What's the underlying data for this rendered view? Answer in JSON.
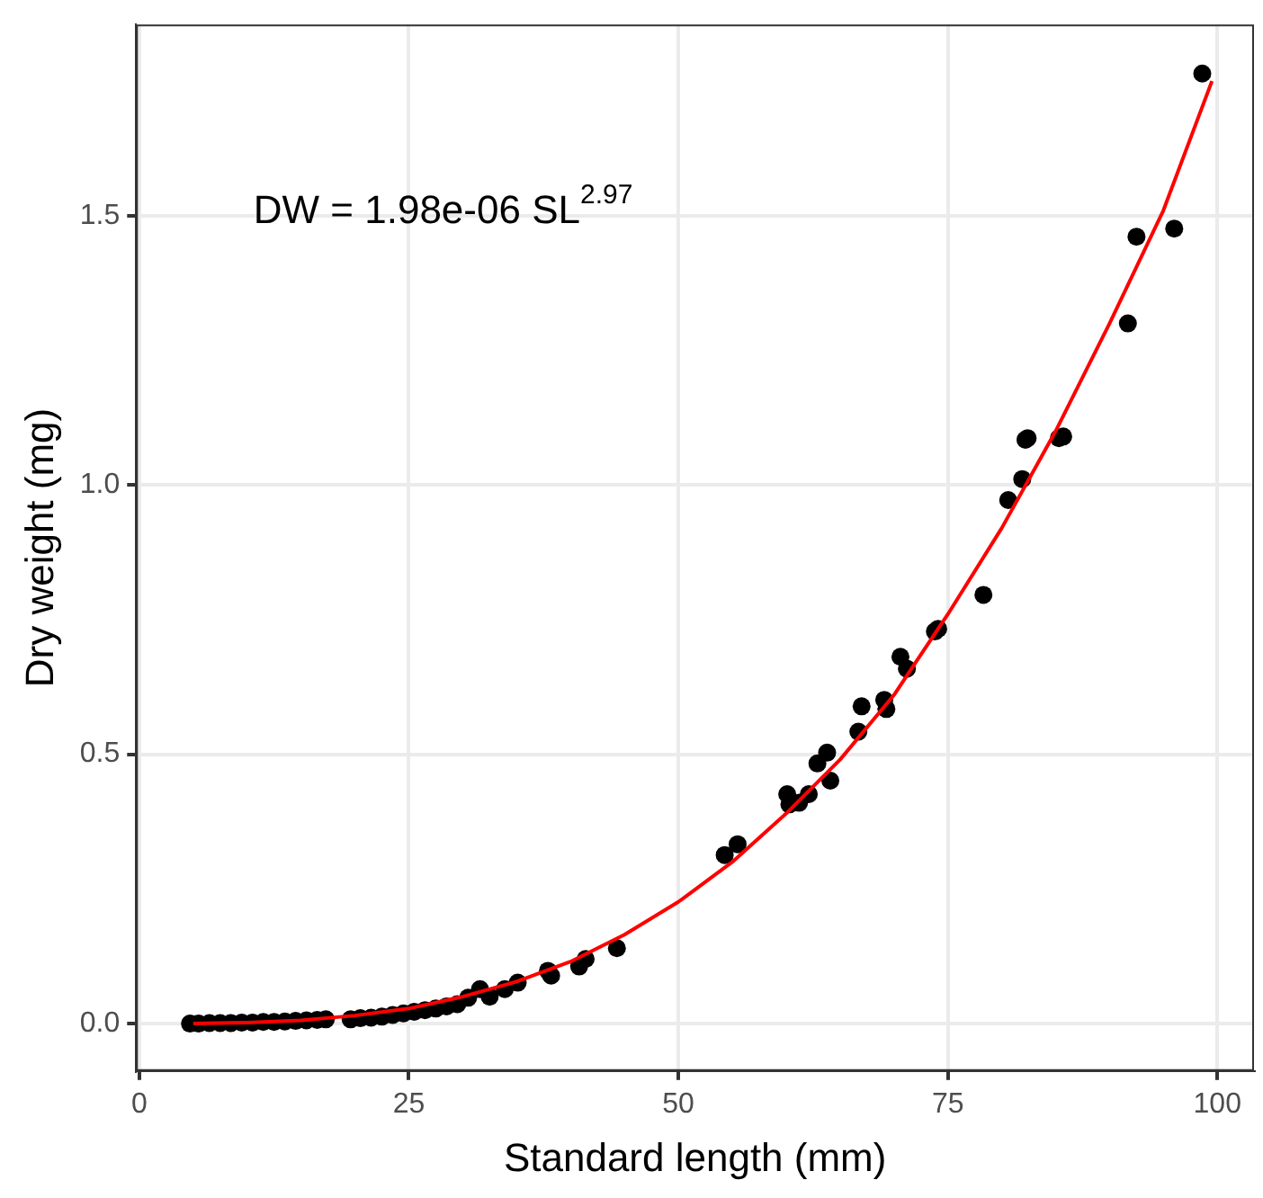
{
  "chart_data": {
    "type": "scatter",
    "xlabel": "Standard length (mm)",
    "ylabel": "Dry weight (mg)",
    "xlim": [
      -0.3,
      103.4
    ],
    "ylim": [
      -0.088,
      1.855
    ],
    "xticks": [
      0,
      25,
      50,
      75,
      100
    ],
    "yticks": [
      {
        "value": 0,
        "label": "0.0"
      },
      {
        "value": 0.5,
        "label": "0.5"
      },
      {
        "value": 1,
        "label": "1.0"
      },
      {
        "value": 1.5,
        "label": "1.5"
      }
    ],
    "grid": true,
    "legend": false,
    "marker": "circle",
    "annotations": [
      "DW = 1.98e-06 SL$^{2.97}$"
    ],
    "series": [
      {
        "color": "#000000",
        "x": [
          4.7,
          5.5,
          6.5,
          7.5,
          8.5,
          9.5,
          10.5,
          11.5,
          12.5,
          13.5,
          14.5,
          15.5,
          16.5,
          17.3,
          19.6,
          20.5,
          21.5,
          22.5,
          23.5,
          24.5,
          25.5,
          26.5,
          27.5,
          28.5,
          29.5,
          30.5,
          31.6,
          32.5,
          33.9,
          35.1,
          37.9,
          38.2,
          40.8,
          41.4,
          44.3,
          54.3,
          55.5,
          60.1,
          60.3,
          61.2,
          62.1,
          62.9,
          63.8,
          64.1,
          66.7,
          67.0,
          69.1,
          69.3,
          70.6,
          71.2,
          73.8,
          74.1,
          78.3,
          80.6,
          81.9,
          82.2,
          82.4,
          85.3,
          85.7,
          91.7,
          92.5,
          96.0,
          98.6
        ],
        "values": [
          0.0,
          0.0,
          0.001,
          0.001,
          0.001,
          0.002,
          0.002,
          0.003,
          0.003,
          0.004,
          0.005,
          0.006,
          0.007,
          0.008,
          0.008,
          0.01,
          0.011,
          0.013,
          0.016,
          0.019,
          0.022,
          0.025,
          0.028,
          0.032,
          0.036,
          0.048,
          0.064,
          0.05,
          0.064,
          0.076,
          0.098,
          0.089,
          0.106,
          0.12,
          0.14,
          0.313,
          0.333,
          0.426,
          0.407,
          0.41,
          0.426,
          0.483,
          0.503,
          0.451,
          0.542,
          0.589,
          0.601,
          0.584,
          0.681,
          0.659,
          0.728,
          0.733,
          0.796,
          0.972,
          1.011,
          1.084,
          1.087,
          1.087,
          1.09,
          1.3,
          1.461,
          1.476,
          1.764
        ]
      },
      {
        "type": "line",
        "color": "#ff0000",
        "marker": "none",
        "x": [
          5,
          10,
          15,
          20,
          25,
          30,
          35,
          40,
          45,
          50,
          55,
          60,
          65,
          70,
          75,
          80,
          85,
          90,
          95,
          99.5
        ],
        "values": [
          0.0,
          0.002,
          0.006,
          0.015,
          0.028,
          0.05,
          0.078,
          0.115,
          0.165,
          0.226,
          0.3,
          0.39,
          0.49,
          0.61,
          0.76,
          0.92,
          1.1,
          1.3,
          1.51,
          1.75
        ]
      }
    ]
  }
}
